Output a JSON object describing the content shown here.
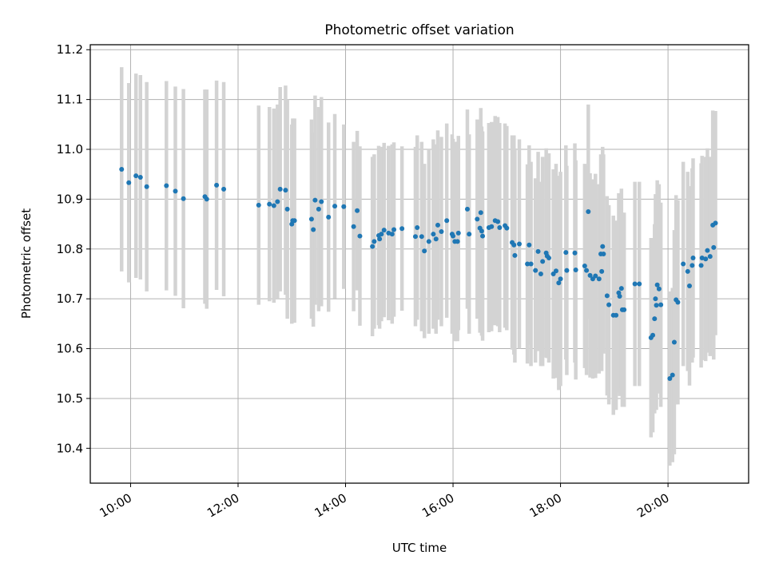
{
  "chart_data": {
    "type": "scatter",
    "title": "Photometric offset variation",
    "xlabel": "UTC time",
    "ylabel": "Photometric offset",
    "x_unit": "hours UTC",
    "xlim": [
      "09:15",
      "21:30"
    ],
    "ylim": [
      10.33,
      11.21
    ],
    "x_ticks": [
      "10:00",
      "12:00",
      "14:00",
      "16:00",
      "18:00",
      "20:00"
    ],
    "y_ticks": [
      "10.4",
      "10.5",
      "10.6",
      "10.7",
      "10.8",
      "10.9",
      "11.0",
      "11.1",
      "11.2"
    ],
    "grid": true,
    "colors": {
      "marker": "#1f77b4",
      "errorbar": "#d3d3d3",
      "grid": "#b0b0b0"
    },
    "points": [
      {
        "t": "09:50",
        "y": 10.96,
        "err": 0.205
      },
      {
        "t": "09:58",
        "y": 10.933,
        "err": 0.2
      },
      {
        "t": "10:06",
        "y": 10.947,
        "err": 0.205
      },
      {
        "t": "10:11",
        "y": 10.944,
        "err": 0.205
      },
      {
        "t": "10:18",
        "y": 10.925,
        "err": 0.21
      },
      {
        "t": "10:40",
        "y": 10.927,
        "err": 0.21
      },
      {
        "t": "10:50",
        "y": 10.916,
        "err": 0.21
      },
      {
        "t": "10:59",
        "y": 10.901,
        "err": 0.22
      },
      {
        "t": "11:23",
        "y": 10.905,
        "err": 0.215
      },
      {
        "t": "11:25",
        "y": 10.9,
        "err": 0.22
      },
      {
        "t": "11:36",
        "y": 10.928,
        "err": 0.21
      },
      {
        "t": "11:44",
        "y": 10.92,
        "err": 0.215
      },
      {
        "t": "12:23",
        "y": 10.888,
        "err": 0.2
      },
      {
        "t": "12:35",
        "y": 10.89,
        "err": 0.195
      },
      {
        "t": "12:40",
        "y": 10.887,
        "err": 0.195
      },
      {
        "t": "12:44",
        "y": 10.895,
        "err": 0.195
      },
      {
        "t": "12:47",
        "y": 10.92,
        "err": 0.205
      },
      {
        "t": "12:53",
        "y": 10.918,
        "err": 0.21
      },
      {
        "t": "12:55",
        "y": 10.88,
        "err": 0.22
      },
      {
        "t": "13:00",
        "y": 10.85,
        "err": 0.2
      },
      {
        "t": "13:01",
        "y": 10.857,
        "err": 0.205
      },
      {
        "t": "13:03",
        "y": 10.857,
        "err": 0.205
      },
      {
        "t": "13:22",
        "y": 10.86,
        "err": 0.2
      },
      {
        "t": "13:24",
        "y": 10.839,
        "err": 0.195
      },
      {
        "t": "13:26",
        "y": 10.898,
        "err": 0.21
      },
      {
        "t": "13:30",
        "y": 10.88,
        "err": 0.205
      },
      {
        "t": "13:33",
        "y": 10.895,
        "err": 0.21
      },
      {
        "t": "13:41",
        "y": 10.864,
        "err": 0.19
      },
      {
        "t": "13:48",
        "y": 10.886,
        "err": 0.185
      },
      {
        "t": "13:58",
        "y": 10.885,
        "err": 0.165
      },
      {
        "t": "14:09",
        "y": 10.845,
        "err": 0.17
      },
      {
        "t": "14:13",
        "y": 10.877,
        "err": 0.16
      },
      {
        "t": "14:16",
        "y": 10.826,
        "err": 0.18
      },
      {
        "t": "14:30",
        "y": 10.805,
        "err": 0.18
      },
      {
        "t": "14:32",
        "y": 10.815,
        "err": 0.175
      },
      {
        "t": "14:37",
        "y": 10.827,
        "err": 0.18
      },
      {
        "t": "14:38",
        "y": 10.82,
        "err": 0.18
      },
      {
        "t": "14:40",
        "y": 10.83,
        "err": 0.175
      },
      {
        "t": "14:43",
        "y": 10.838,
        "err": 0.175
      },
      {
        "t": "14:48",
        "y": 10.832,
        "err": 0.175
      },
      {
        "t": "14:52",
        "y": 10.83,
        "err": 0.18
      },
      {
        "t": "14:54",
        "y": 10.839,
        "err": 0.175
      },
      {
        "t": "15:03",
        "y": 10.841,
        "err": 0.165
      },
      {
        "t": "15:18",
        "y": 10.825,
        "err": 0.18
      },
      {
        "t": "15:20",
        "y": 10.843,
        "err": 0.185
      },
      {
        "t": "15:25",
        "y": 10.825,
        "err": 0.19
      },
      {
        "t": "15:28",
        "y": 10.796,
        "err": 0.175
      },
      {
        "t": "15:33",
        "y": 10.815,
        "err": 0.185
      },
      {
        "t": "15:38",
        "y": 10.83,
        "err": 0.19
      },
      {
        "t": "15:41",
        "y": 10.82,
        "err": 0.19
      },
      {
        "t": "15:43",
        "y": 10.848,
        "err": 0.19
      },
      {
        "t": "15:47",
        "y": 10.835,
        "err": 0.19
      },
      {
        "t": "15:53",
        "y": 10.857,
        "err": 0.195
      },
      {
        "t": "15:59",
        "y": 10.83,
        "err": 0.2
      },
      {
        "t": "16:00",
        "y": 10.826,
        "err": 0.195
      },
      {
        "t": "16:02",
        "y": 10.815,
        "err": 0.2
      },
      {
        "t": "16:05",
        "y": 10.815,
        "err": 0.2
      },
      {
        "t": "16:06",
        "y": 10.832,
        "err": 0.195
      },
      {
        "t": "16:16",
        "y": 10.88,
        "err": 0.2
      },
      {
        "t": "16:18",
        "y": 10.83,
        "err": 0.2
      },
      {
        "t": "16:27",
        "y": 10.86,
        "err": 0.2
      },
      {
        "t": "16:30",
        "y": 10.842,
        "err": 0.21
      },
      {
        "t": "16:31",
        "y": 10.873,
        "err": 0.21
      },
      {
        "t": "16:32",
        "y": 10.836,
        "err": 0.21
      },
      {
        "t": "16:33",
        "y": 10.826,
        "err": 0.21
      },
      {
        "t": "16:40",
        "y": 10.843,
        "err": 0.21
      },
      {
        "t": "16:43",
        "y": 10.845,
        "err": 0.21
      },
      {
        "t": "16:47",
        "y": 10.857,
        "err": 0.21
      },
      {
        "t": "16:50",
        "y": 10.855,
        "err": 0.21
      },
      {
        "t": "16:52",
        "y": 10.843,
        "err": 0.21
      },
      {
        "t": "16:58",
        "y": 10.847,
        "err": 0.205
      },
      {
        "t": "17:00",
        "y": 10.842,
        "err": 0.205
      },
      {
        "t": "17:06",
        "y": 10.813,
        "err": 0.215
      },
      {
        "t": "17:08",
        "y": 10.808,
        "err": 0.22
      },
      {
        "t": "17:09",
        "y": 10.787,
        "err": 0.215
      },
      {
        "t": "17:14",
        "y": 10.81,
        "err": 0.21
      },
      {
        "t": "17:23",
        "y": 10.77,
        "err": 0.2
      },
      {
        "t": "17:25",
        "y": 10.808,
        "err": 0.2
      },
      {
        "t": "17:27",
        "y": 10.77,
        "err": 0.205
      },
      {
        "t": "17:32",
        "y": 10.757,
        "err": 0.185
      },
      {
        "t": "17:35",
        "y": 10.795,
        "err": 0.2
      },
      {
        "t": "17:38",
        "y": 10.75,
        "err": 0.185
      },
      {
        "t": "17:40",
        "y": 10.775,
        "err": 0.21
      },
      {
        "t": "17:44",
        "y": 10.792,
        "err": 0.21
      },
      {
        "t": "17:45",
        "y": 10.786,
        "err": 0.205
      },
      {
        "t": "17:47",
        "y": 10.782,
        "err": 0.21
      },
      {
        "t": "17:52",
        "y": 10.75,
        "err": 0.21
      },
      {
        "t": "17:55",
        "y": 10.756,
        "err": 0.215
      },
      {
        "t": "17:58",
        "y": 10.732,
        "err": 0.215
      },
      {
        "t": "18:00",
        "y": 10.74,
        "err": 0.215
      },
      {
        "t": "18:06",
        "y": 10.793,
        "err": 0.215
      },
      {
        "t": "18:07",
        "y": 10.757,
        "err": 0.21
      },
      {
        "t": "18:16",
        "y": 10.792,
        "err": 0.22
      },
      {
        "t": "18:17",
        "y": 10.758,
        "err": 0.22
      },
      {
        "t": "18:27",
        "y": 10.766,
        "err": 0.205
      },
      {
        "t": "18:29",
        "y": 10.757,
        "err": 0.21
      },
      {
        "t": "18:31",
        "y": 10.875,
        "err": 0.215
      },
      {
        "t": "18:33",
        "y": 10.747,
        "err": 0.205
      },
      {
        "t": "18:36",
        "y": 10.74,
        "err": 0.2
      },
      {
        "t": "18:39",
        "y": 10.746,
        "err": 0.205
      },
      {
        "t": "18:43",
        "y": 10.74,
        "err": 0.19
      },
      {
        "t": "18:45",
        "y": 10.79,
        "err": 0.2
      },
      {
        "t": "18:46",
        "y": 10.755,
        "err": 0.2
      },
      {
        "t": "18:47",
        "y": 10.805,
        "err": 0.2
      },
      {
        "t": "18:48",
        "y": 10.79,
        "err": 0.2
      },
      {
        "t": "18:52",
        "y": 10.706,
        "err": 0.2
      },
      {
        "t": "18:54",
        "y": 10.688,
        "err": 0.2
      },
      {
        "t": "18:59",
        "y": 10.667,
        "err": 0.2
      },
      {
        "t": "19:02",
        "y": 10.667,
        "err": 0.19
      },
      {
        "t": "19:05",
        "y": 10.712,
        "err": 0.2
      },
      {
        "t": "19:06",
        "y": 10.705,
        "err": 0.2
      },
      {
        "t": "19:08",
        "y": 10.721,
        "err": 0.2
      },
      {
        "t": "19:09",
        "y": 10.678,
        "err": 0.195
      },
      {
        "t": "19:11",
        "y": 10.678,
        "err": 0.195
      },
      {
        "t": "19:23",
        "y": 10.73,
        "err": 0.205
      },
      {
        "t": "19:28",
        "y": 10.73,
        "err": 0.205
      },
      {
        "t": "19:41",
        "y": 10.622,
        "err": 0.2
      },
      {
        "t": "19:43",
        "y": 10.627,
        "err": 0.195
      },
      {
        "t": "19:45",
        "y": 10.66,
        "err": 0.19
      },
      {
        "t": "19:46",
        "y": 10.7,
        "err": 0.21
      },
      {
        "t": "19:47",
        "y": 10.687,
        "err": 0.21
      },
      {
        "t": "19:48",
        "y": 10.728,
        "err": 0.21
      },
      {
        "t": "19:50",
        "y": 10.72,
        "err": 0.21
      },
      {
        "t": "19:52",
        "y": 10.688,
        "err": 0.205
      },
      {
        "t": "20:02",
        "y": 10.54,
        "err": 0.175
      },
      {
        "t": "20:05",
        "y": 10.547,
        "err": 0.175
      },
      {
        "t": "20:07",
        "y": 10.613,
        "err": 0.225
      },
      {
        "t": "20:09",
        "y": 10.698,
        "err": 0.21
      },
      {
        "t": "20:11",
        "y": 10.693,
        "err": 0.205
      },
      {
        "t": "20:17",
        "y": 10.77,
        "err": 0.205
      },
      {
        "t": "20:22",
        "y": 10.755,
        "err": 0.2
      },
      {
        "t": "20:24",
        "y": 10.726,
        "err": 0.2
      },
      {
        "t": "20:27",
        "y": 10.767,
        "err": 0.195
      },
      {
        "t": "20:28",
        "y": 10.782,
        "err": 0.2
      },
      {
        "t": "20:37",
        "y": 10.767,
        "err": 0.205
      },
      {
        "t": "20:38",
        "y": 10.782,
        "err": 0.205
      },
      {
        "t": "20:42",
        "y": 10.78,
        "err": 0.205
      },
      {
        "t": "20:44",
        "y": 10.797,
        "err": 0.205
      },
      {
        "t": "20:47",
        "y": 10.785,
        "err": 0.2
      },
      {
        "t": "20:50",
        "y": 10.848,
        "err": 0.23
      },
      {
        "t": "20:51",
        "y": 10.803,
        "err": 0.225
      },
      {
        "t": "20:53",
        "y": 10.852,
        "err": 0.225
      }
    ]
  }
}
